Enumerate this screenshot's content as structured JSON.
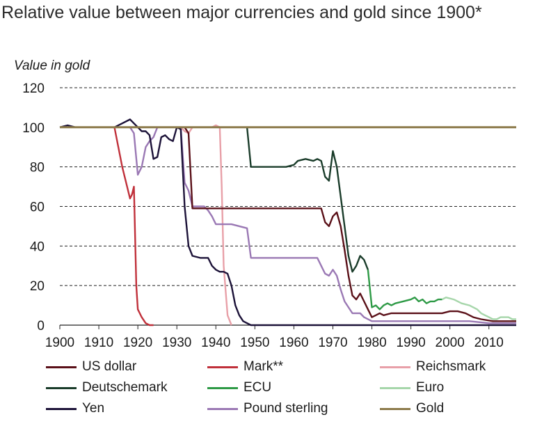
{
  "title": "Relative value between major currencies and gold since 1900*",
  "chart_data": {
    "type": "line",
    "ylabel": "Value in gold",
    "xlim": [
      1900,
      2017
    ],
    "ylim": [
      0,
      120
    ],
    "y_ticks": [
      0,
      20,
      40,
      60,
      80,
      100,
      120
    ],
    "x_ticks": [
      1900,
      1910,
      1920,
      1930,
      1940,
      1950,
      1960,
      1970,
      1980,
      1990,
      2000,
      2010
    ],
    "grid": "horizontal dashed",
    "legend_position": "bottom",
    "series": [
      {
        "name": "Gold",
        "color": "#8c7a4a",
        "points": [
          [
            1900,
            100
          ],
          [
            2017,
            100
          ]
        ]
      },
      {
        "name": "Mark**",
        "color": "#c0303a",
        "points": [
          [
            1900,
            100
          ],
          [
            1914,
            100
          ],
          [
            1915,
            90
          ],
          [
            1916,
            80
          ],
          [
            1917,
            72
          ],
          [
            1918,
            64
          ],
          [
            1918.5,
            66
          ],
          [
            1919,
            70
          ],
          [
            1919.3,
            45
          ],
          [
            1919.6,
            20
          ],
          [
            1920,
            8
          ],
          [
            1921,
            4
          ],
          [
            1922,
            1
          ],
          [
            1923,
            0
          ],
          [
            1924,
            0
          ]
        ]
      },
      {
        "name": "Reichsmark",
        "color": "#e8a0a8",
        "points": [
          [
            1924,
            100
          ],
          [
            1931,
            100
          ],
          [
            1932,
            98
          ],
          [
            1933,
            97
          ],
          [
            1934,
            100
          ],
          [
            1939,
            100
          ],
          [
            1940,
            101
          ],
          [
            1941,
            100
          ],
          [
            1941.5,
            70
          ],
          [
            1942,
            30
          ],
          [
            1943,
            5
          ],
          [
            1944,
            0
          ]
        ]
      },
      {
        "name": "Deutschemark",
        "color": "#1a3c2a",
        "points": [
          [
            1948,
            100
          ],
          [
            1949,
            80
          ],
          [
            1958,
            80
          ],
          [
            1960,
            81
          ],
          [
            1961,
            83
          ],
          [
            1963,
            84
          ],
          [
            1965,
            83
          ],
          [
            1966,
            84
          ],
          [
            1967,
            83
          ],
          [
            1968,
            75
          ],
          [
            1969,
            73
          ],
          [
            1970,
            88
          ],
          [
            1971,
            80
          ],
          [
            1972,
            65
          ],
          [
            1973,
            50
          ],
          [
            1974,
            35
          ],
          [
            1975,
            27
          ],
          [
            1976,
            30
          ],
          [
            1977,
            35
          ],
          [
            1978,
            33
          ],
          [
            1979,
            28
          ]
        ]
      },
      {
        "name": "ECU",
        "color": "#2e9a46",
        "points": [
          [
            1979,
            28
          ],
          [
            1980,
            9
          ],
          [
            1981,
            10
          ],
          [
            1982,
            8
          ],
          [
            1983,
            10
          ],
          [
            1984,
            11
          ],
          [
            1985,
            10
          ],
          [
            1986,
            11
          ],
          [
            1988,
            12
          ],
          [
            1990,
            13
          ],
          [
            1991,
            14
          ],
          [
            1992,
            12
          ],
          [
            1993,
            13
          ],
          [
            1994,
            11
          ],
          [
            1995,
            12
          ],
          [
            1996,
            12
          ],
          [
            1997,
            13
          ],
          [
            1998,
            13
          ]
        ]
      },
      {
        "name": "Euro",
        "color": "#a6d6aa",
        "points": [
          [
            1998,
            13
          ],
          [
            1999,
            14
          ],
          [
            2001,
            13
          ],
          [
            2003,
            11
          ],
          [
            2005,
            10
          ],
          [
            2006,
            9
          ],
          [
            2007,
            8
          ],
          [
            2008,
            6
          ],
          [
            2009,
            5
          ],
          [
            2010,
            4
          ],
          [
            2011,
            3
          ],
          [
            2012,
            3
          ],
          [
            2013,
            4
          ],
          [
            2015,
            4
          ],
          [
            2016,
            3
          ],
          [
            2017,
            3
          ]
        ]
      },
      {
        "name": "US dollar",
        "color": "#5a1018",
        "points": [
          [
            1900,
            100
          ],
          [
            1932,
            100
          ],
          [
            1933,
            97
          ],
          [
            1934,
            59
          ],
          [
            1967,
            59
          ],
          [
            1968,
            52
          ],
          [
            1969,
            50
          ],
          [
            1970,
            55
          ],
          [
            1971,
            57
          ],
          [
            1972,
            50
          ],
          [
            1973,
            38
          ],
          [
            1974,
            25
          ],
          [
            1975,
            15
          ],
          [
            1976,
            13
          ],
          [
            1977,
            16
          ],
          [
            1978,
            12
          ],
          [
            1979,
            8
          ],
          [
            1980,
            4
          ],
          [
            1981,
            5
          ],
          [
            1982,
            6
          ],
          [
            1983,
            5
          ],
          [
            1985,
            6
          ],
          [
            1987,
            6
          ],
          [
            1990,
            6
          ],
          [
            1995,
            6
          ],
          [
            1998,
            6
          ],
          [
            2000,
            7
          ],
          [
            2002,
            7
          ],
          [
            2004,
            6
          ],
          [
            2006,
            4
          ],
          [
            2008,
            3
          ],
          [
            2011,
            2
          ],
          [
            2015,
            2
          ],
          [
            2017,
            2
          ]
        ]
      },
      {
        "name": "Yen",
        "color": "#1c1238",
        "points": [
          [
            1900,
            100
          ],
          [
            1902,
            101
          ],
          [
            1904,
            100
          ],
          [
            1910,
            100
          ],
          [
            1914,
            100
          ],
          [
            1916,
            102
          ],
          [
            1918,
            104
          ],
          [
            1919,
            102
          ],
          [
            1920,
            100
          ],
          [
            1921,
            98
          ],
          [
            1922,
            98
          ],
          [
            1923,
            96
          ],
          [
            1924,
            84
          ],
          [
            1925,
            85
          ],
          [
            1926,
            95
          ],
          [
            1927,
            96
          ],
          [
            1928,
            94
          ],
          [
            1929,
            93
          ],
          [
            1930,
            100
          ],
          [
            1931,
            99
          ],
          [
            1932,
            60
          ],
          [
            1933,
            40
          ],
          [
            1934,
            35
          ],
          [
            1936,
            34
          ],
          [
            1938,
            34
          ],
          [
            1939,
            30
          ],
          [
            1940,
            28
          ],
          [
            1941,
            27
          ],
          [
            1942,
            27
          ],
          [
            1943,
            26
          ],
          [
            1944,
            20
          ],
          [
            1945,
            10
          ],
          [
            1946,
            5
          ],
          [
            1947,
            2
          ],
          [
            1948,
            1
          ],
          [
            1949,
            0
          ],
          [
            2017,
            0
          ]
        ]
      },
      {
        "name": "Pound sterling",
        "color": "#9a78b4",
        "points": [
          [
            1900,
            100
          ],
          [
            1914,
            100
          ],
          [
            1918,
            100
          ],
          [
            1919,
            97
          ],
          [
            1920,
            76
          ],
          [
            1921,
            80
          ],
          [
            1922,
            90
          ],
          [
            1923,
            93
          ],
          [
            1924,
            95
          ],
          [
            1925,
            100
          ],
          [
            1931,
            100
          ],
          [
            1932,
            72
          ],
          [
            1933,
            68
          ],
          [
            1934,
            60
          ],
          [
            1937,
            60
          ],
          [
            1938,
            58
          ],
          [
            1939,
            55
          ],
          [
            1940,
            51
          ],
          [
            1944,
            51
          ],
          [
            1946,
            50
          ],
          [
            1948,
            49
          ],
          [
            1949,
            34
          ],
          [
            1966,
            34
          ],
          [
            1967,
            30
          ],
          [
            1968,
            26
          ],
          [
            1969,
            25
          ],
          [
            1970,
            28
          ],
          [
            1971,
            25
          ],
          [
            1972,
            18
          ],
          [
            1973,
            12
          ],
          [
            1974,
            9
          ],
          [
            1975,
            6
          ],
          [
            1977,
            6
          ],
          [
            1978,
            4
          ],
          [
            1980,
            2
          ],
          [
            1985,
            2
          ],
          [
            1990,
            2
          ],
          [
            2000,
            2
          ],
          [
            2005,
            2
          ],
          [
            2010,
            1
          ],
          [
            2017,
            1
          ]
        ]
      }
    ]
  },
  "legend": [
    {
      "label": "US dollar",
      "color": "#5a1018"
    },
    {
      "label": "Mark**",
      "color": "#c0303a"
    },
    {
      "label": "Reichsmark",
      "color": "#e8a0a8"
    },
    {
      "label": "Deutschemark",
      "color": "#1a3c2a"
    },
    {
      "label": "ECU",
      "color": "#2e9a46"
    },
    {
      "label": "Euro",
      "color": "#a6d6aa"
    },
    {
      "label": "Yen",
      "color": "#1c1238"
    },
    {
      "label": "Pound sterling",
      "color": "#9a78b4"
    },
    {
      "label": "Gold",
      "color": "#8c7a4a"
    }
  ]
}
